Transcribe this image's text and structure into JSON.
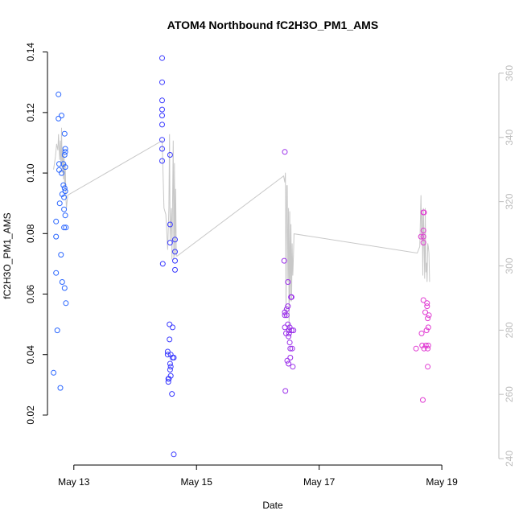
{
  "chart_data": {
    "type": "scatter",
    "title": "ATOM4 Northbound fC2H3O_PM1_AMS",
    "xlabel": "Date",
    "ylabel": "fC2H3O_PM1_AMS",
    "y2label": "",
    "x_unit": "days since 2014-05-12 00:00",
    "xlim": [
      0.57,
      7.93
    ],
    "ylim": [
      0.0035,
      0.1415
    ],
    "y2lim": [
      238,
      368
    ],
    "x_ticks": [
      {
        "value": 1,
        "label": "May 13"
      },
      {
        "value": 3,
        "label": "May 15"
      },
      {
        "value": 5,
        "label": "May 17"
      },
      {
        "value": 7,
        "label": "May 19"
      }
    ],
    "y_ticks": [
      {
        "value": 0.02,
        "label": "0.02"
      },
      {
        "value": 0.04,
        "label": "0.04"
      },
      {
        "value": 0.06,
        "label": "0.06"
      },
      {
        "value": 0.08,
        "label": "0.08"
      },
      {
        "value": 0.1,
        "label": "0.10"
      },
      {
        "value": 0.12,
        "label": "0.12"
      },
      {
        "value": 0.14,
        "label": "0.14"
      }
    ],
    "y2_ticks": [
      {
        "value": 240,
        "label": "240"
      },
      {
        "value": 260,
        "label": "260"
      },
      {
        "value": 280,
        "label": "280"
      },
      {
        "value": 300,
        "label": "300"
      },
      {
        "value": 320,
        "label": "320"
      },
      {
        "value": 340,
        "label": "340"
      },
      {
        "value": 360,
        "label": "360"
      }
    ],
    "grid": false,
    "legend": "none",
    "point_style": "open-circle",
    "line_color": "#c8c8c8",
    "tick_color_right": "#bdbdbd",
    "points": [
      {
        "x": 0.67,
        "y": 0.034,
        "color": "#2a66ff"
      },
      {
        "x": 0.71,
        "y": 0.084,
        "color": "#2a66ff"
      },
      {
        "x": 0.71,
        "y": 0.079,
        "color": "#2a66ff"
      },
      {
        "x": 0.71,
        "y": 0.067,
        "color": "#2a66ff"
      },
      {
        "x": 0.73,
        "y": 0.048,
        "color": "#2a66ff"
      },
      {
        "x": 0.75,
        "y": 0.126,
        "color": "#2a66ff"
      },
      {
        "x": 0.75,
        "y": 0.118,
        "color": "#2a66ff"
      },
      {
        "x": 0.76,
        "y": 0.103,
        "color": "#2a66ff"
      },
      {
        "x": 0.76,
        "y": 0.101,
        "color": "#2a66ff"
      },
      {
        "x": 0.77,
        "y": 0.09,
        "color": "#2a66ff"
      },
      {
        "x": 0.78,
        "y": 0.029,
        "color": "#2a66ff"
      },
      {
        "x": 0.79,
        "y": 0.073,
        "color": "#2a66ff"
      },
      {
        "x": 0.8,
        "y": 0.119,
        "color": "#2a66ff"
      },
      {
        "x": 0.8,
        "y": 0.1,
        "color": "#2a66ff"
      },
      {
        "x": 0.81,
        "y": 0.093,
        "color": "#2a66ff"
      },
      {
        "x": 0.81,
        "y": 0.064,
        "color": "#2a66ff"
      },
      {
        "x": 0.83,
        "y": 0.103,
        "color": "#2a66ff"
      },
      {
        "x": 0.83,
        "y": 0.096,
        "color": "#2a66ff"
      },
      {
        "x": 0.84,
        "y": 0.092,
        "color": "#2a66ff"
      },
      {
        "x": 0.84,
        "y": 0.088,
        "color": "#2a66ff"
      },
      {
        "x": 0.84,
        "y": 0.082,
        "color": "#2a66ff"
      },
      {
        "x": 0.85,
        "y": 0.113,
        "color": "#2a66ff"
      },
      {
        "x": 0.85,
        "y": 0.106,
        "color": "#2a66ff"
      },
      {
        "x": 0.85,
        "y": 0.095,
        "color": "#2a66ff"
      },
      {
        "x": 0.85,
        "y": 0.062,
        "color": "#2a66ff"
      },
      {
        "x": 0.86,
        "y": 0.108,
        "color": "#2a66ff"
      },
      {
        "x": 0.86,
        "y": 0.107,
        "color": "#2a66ff"
      },
      {
        "x": 0.86,
        "y": 0.102,
        "color": "#2a66ff"
      },
      {
        "x": 0.86,
        "y": 0.094,
        "color": "#2a66ff"
      },
      {
        "x": 0.86,
        "y": 0.086,
        "color": "#2a66ff"
      },
      {
        "x": 0.87,
        "y": 0.082,
        "color": "#2a66ff"
      },
      {
        "x": 0.87,
        "y": 0.057,
        "color": "#2a66ff"
      },
      {
        "x": 2.44,
        "y": 0.138,
        "color": "#3a3aff"
      },
      {
        "x": 2.44,
        "y": 0.13,
        "color": "#3a3aff"
      },
      {
        "x": 2.44,
        "y": 0.124,
        "color": "#3a3aff"
      },
      {
        "x": 2.44,
        "y": 0.121,
        "color": "#3a3aff"
      },
      {
        "x": 2.44,
        "y": 0.119,
        "color": "#3a3aff"
      },
      {
        "x": 2.44,
        "y": 0.116,
        "color": "#3a3aff"
      },
      {
        "x": 2.44,
        "y": 0.111,
        "color": "#3a3aff"
      },
      {
        "x": 2.44,
        "y": 0.108,
        "color": "#3a3aff"
      },
      {
        "x": 2.44,
        "y": 0.104,
        "color": "#3a3aff"
      },
      {
        "x": 2.45,
        "y": 0.07,
        "color": "#3a3aff"
      },
      {
        "x": 2.53,
        "y": 0.041,
        "color": "#3a3aff"
      },
      {
        "x": 2.53,
        "y": 0.04,
        "color": "#3a3aff"
      },
      {
        "x": 2.54,
        "y": 0.032,
        "color": "#3a3aff"
      },
      {
        "x": 2.54,
        "y": 0.031,
        "color": "#3a3aff"
      },
      {
        "x": 2.55,
        "y": 0.032,
        "color": "#3a3aff"
      },
      {
        "x": 2.56,
        "y": 0.05,
        "color": "#3a3aff"
      },
      {
        "x": 2.56,
        "y": 0.045,
        "color": "#3a3aff"
      },
      {
        "x": 2.57,
        "y": 0.106,
        "color": "#3a3aff"
      },
      {
        "x": 2.57,
        "y": 0.083,
        "color": "#3a3aff"
      },
      {
        "x": 2.57,
        "y": 0.077,
        "color": "#3a3aff"
      },
      {
        "x": 2.57,
        "y": 0.037,
        "color": "#3a3aff"
      },
      {
        "x": 2.57,
        "y": 0.035,
        "color": "#3a3aff"
      },
      {
        "x": 2.58,
        "y": 0.04,
        "color": "#3a3aff"
      },
      {
        "x": 2.58,
        "y": 0.036,
        "color": "#3a3aff"
      },
      {
        "x": 2.58,
        "y": 0.033,
        "color": "#3a3aff"
      },
      {
        "x": 2.6,
        "y": 0.027,
        "color": "#3a3aff"
      },
      {
        "x": 2.61,
        "y": 0.049,
        "color": "#3a3aff"
      },
      {
        "x": 2.61,
        "y": 0.039,
        "color": "#3a3aff"
      },
      {
        "x": 2.63,
        "y": 0.007,
        "color": "#3a3aff"
      },
      {
        "x": 2.63,
        "y": 0.039,
        "color": "#3a3aff"
      },
      {
        "x": 2.65,
        "y": 0.078,
        "color": "#3a3aff"
      },
      {
        "x": 2.65,
        "y": 0.074,
        "color": "#3a3aff"
      },
      {
        "x": 2.65,
        "y": 0.071,
        "color": "#3a3aff"
      },
      {
        "x": 2.65,
        "y": 0.068,
        "color": "#3a3aff"
      },
      {
        "x": 4.44,
        "y": 0.107,
        "color": "#9a2eea"
      },
      {
        "x": 4.43,
        "y": 0.071,
        "color": "#9a2eea"
      },
      {
        "x": 4.44,
        "y": 0.054,
        "color": "#9a2eea"
      },
      {
        "x": 4.44,
        "y": 0.053,
        "color": "#9a2eea"
      },
      {
        "x": 4.44,
        "y": 0.049,
        "color": "#9a2eea"
      },
      {
        "x": 4.45,
        "y": 0.028,
        "color": "#9a2eea"
      },
      {
        "x": 4.46,
        "y": 0.047,
        "color": "#9a2eea"
      },
      {
        "x": 4.47,
        "y": 0.055,
        "color": "#9a2eea"
      },
      {
        "x": 4.47,
        "y": 0.053,
        "color": "#9a2eea"
      },
      {
        "x": 4.48,
        "y": 0.038,
        "color": "#9a2eea"
      },
      {
        "x": 4.49,
        "y": 0.064,
        "color": "#9a2eea"
      },
      {
        "x": 4.49,
        "y": 0.056,
        "color": "#9a2eea"
      },
      {
        "x": 4.49,
        "y": 0.05,
        "color": "#9a2eea"
      },
      {
        "x": 4.5,
        "y": 0.046,
        "color": "#9a2eea"
      },
      {
        "x": 4.5,
        "y": 0.037,
        "color": "#9a2eea"
      },
      {
        "x": 4.51,
        "y": 0.048,
        "color": "#9a2eea"
      },
      {
        "x": 4.51,
        "y": 0.047,
        "color": "#9a2eea"
      },
      {
        "x": 4.52,
        "y": 0.049,
        "color": "#9a2eea"
      },
      {
        "x": 4.52,
        "y": 0.044,
        "color": "#9a2eea"
      },
      {
        "x": 4.53,
        "y": 0.042,
        "color": "#9a2eea"
      },
      {
        "x": 4.53,
        "y": 0.039,
        "color": "#9a2eea"
      },
      {
        "x": 4.54,
        "y": 0.059,
        "color": "#9a2eea"
      },
      {
        "x": 4.55,
        "y": 0.059,
        "color": "#9a2eea"
      },
      {
        "x": 4.55,
        "y": 0.048,
        "color": "#9a2eea"
      },
      {
        "x": 4.56,
        "y": 0.042,
        "color": "#9a2eea"
      },
      {
        "x": 4.57,
        "y": 0.036,
        "color": "#9a2eea"
      },
      {
        "x": 4.58,
        "y": 0.048,
        "color": "#9a2eea"
      },
      {
        "x": 6.58,
        "y": 0.042,
        "color": "#e03ad2"
      },
      {
        "x": 6.66,
        "y": 0.079,
        "color": "#e03ad2"
      },
      {
        "x": 6.67,
        "y": 0.047,
        "color": "#e03ad2"
      },
      {
        "x": 6.68,
        "y": 0.043,
        "color": "#e03ad2"
      },
      {
        "x": 6.69,
        "y": 0.025,
        "color": "#e03ad2"
      },
      {
        "x": 6.7,
        "y": 0.087,
        "color": "#e03ad2"
      },
      {
        "x": 6.7,
        "y": 0.081,
        "color": "#e03ad2"
      },
      {
        "x": 6.7,
        "y": 0.079,
        "color": "#e03ad2"
      },
      {
        "x": 6.7,
        "y": 0.077,
        "color": "#e03ad2"
      },
      {
        "x": 6.7,
        "y": 0.058,
        "color": "#e03ad2"
      },
      {
        "x": 6.71,
        "y": 0.087,
        "color": "#e03ad2"
      },
      {
        "x": 6.71,
        "y": 0.042,
        "color": "#e03ad2"
      },
      {
        "x": 6.73,
        "y": 0.054,
        "color": "#e03ad2"
      },
      {
        "x": 6.74,
        "y": 0.043,
        "color": "#e03ad2"
      },
      {
        "x": 6.75,
        "y": 0.048,
        "color": "#e03ad2"
      },
      {
        "x": 6.76,
        "y": 0.057,
        "color": "#e03ad2"
      },
      {
        "x": 6.76,
        "y": 0.056,
        "color": "#e03ad2"
      },
      {
        "x": 6.77,
        "y": 0.052,
        "color": "#e03ad2"
      },
      {
        "x": 6.77,
        "y": 0.042,
        "color": "#e03ad2"
      },
      {
        "x": 6.77,
        "y": 0.036,
        "color": "#e03ad2"
      },
      {
        "x": 6.78,
        "y": 0.049,
        "color": "#e03ad2"
      },
      {
        "x": 6.78,
        "y": 0.043,
        "color": "#e03ad2"
      },
      {
        "x": 6.79,
        "y": 0.053,
        "color": "#e03ad2"
      }
    ],
    "line_series": [
      {
        "x": 0.67,
        "y2": 330
      },
      {
        "x": 0.7,
        "y2": 334
      },
      {
        "x": 0.72,
        "y2": 338
      },
      {
        "x": 0.74,
        "y2": 336
      },
      {
        "x": 0.75,
        "y2": 341
      },
      {
        "x": 0.77,
        "y2": 333
      },
      {
        "x": 0.78,
        "y2": 339
      },
      {
        "x": 0.79,
        "y2": 331
      },
      {
        "x": 0.8,
        "y2": 343
      },
      {
        "x": 0.81,
        "y2": 329
      },
      {
        "x": 0.82,
        "y2": 337
      },
      {
        "x": 0.83,
        "y2": 327
      },
      {
        "x": 0.84,
        "y2": 335
      },
      {
        "x": 0.85,
        "y2": 325
      },
      {
        "x": 0.86,
        "y2": 332
      },
      {
        "x": 0.87,
        "y2": 321
      },
      {
        "x": 0.88,
        "y2": 318
      },
      {
        "x": 0.9,
        "y2": 322
      },
      {
        "x": 2.44,
        "y2": 339
      },
      {
        "x": 2.45,
        "y2": 332
      },
      {
        "x": 2.47,
        "y2": 318
      },
      {
        "x": 2.5,
        "y2": 316
      },
      {
        "x": 2.53,
        "y2": 305
      },
      {
        "x": 2.55,
        "y2": 318
      },
      {
        "x": 2.56,
        "y2": 341
      },
      {
        "x": 2.57,
        "y2": 308
      },
      {
        "x": 2.59,
        "y2": 318
      },
      {
        "x": 2.6,
        "y2": 302
      },
      {
        "x": 2.62,
        "y2": 339
      },
      {
        "x": 2.63,
        "y2": 302
      },
      {
        "x": 2.64,
        "y2": 332
      },
      {
        "x": 2.65,
        "y2": 303
      },
      {
        "x": 2.66,
        "y2": 324
      },
      {
        "x": 2.67,
        "y2": 304
      },
      {
        "x": 2.68,
        "y2": 303
      },
      {
        "x": 4.42,
        "y2": 328
      },
      {
        "x": 4.44,
        "y2": 326
      },
      {
        "x": 4.45,
        "y2": 329
      },
      {
        "x": 4.46,
        "y2": 284
      },
      {
        "x": 4.47,
        "y2": 325
      },
      {
        "x": 4.48,
        "y2": 325
      },
      {
        "x": 4.49,
        "y2": 295
      },
      {
        "x": 4.5,
        "y2": 318
      },
      {
        "x": 4.51,
        "y2": 279
      },
      {
        "x": 4.52,
        "y2": 317
      },
      {
        "x": 4.53,
        "y2": 289
      },
      {
        "x": 4.54,
        "y2": 313
      },
      {
        "x": 4.55,
        "y2": 289
      },
      {
        "x": 4.56,
        "y2": 307
      },
      {
        "x": 4.57,
        "y2": 297
      },
      {
        "x": 4.58,
        "y2": 303
      },
      {
        "x": 4.59,
        "y2": 310
      },
      {
        "x": 6.6,
        "y2": 304
      },
      {
        "x": 6.64,
        "y2": 306
      },
      {
        "x": 6.66,
        "y2": 322
      },
      {
        "x": 6.67,
        "y2": 308
      },
      {
        "x": 6.68,
        "y2": 316
      },
      {
        "x": 6.69,
        "y2": 297
      },
      {
        "x": 6.7,
        "y2": 318
      },
      {
        "x": 6.72,
        "y2": 296
      },
      {
        "x": 6.73,
        "y2": 318
      },
      {
        "x": 6.74,
        "y2": 298
      },
      {
        "x": 6.75,
        "y2": 301
      },
      {
        "x": 6.76,
        "y2": 295
      },
      {
        "x": 6.77,
        "y2": 307
      },
      {
        "x": 6.78,
        "y2": 306
      },
      {
        "x": 6.79,
        "y2": 304
      },
      {
        "x": 6.8,
        "y2": 295
      }
    ]
  }
}
